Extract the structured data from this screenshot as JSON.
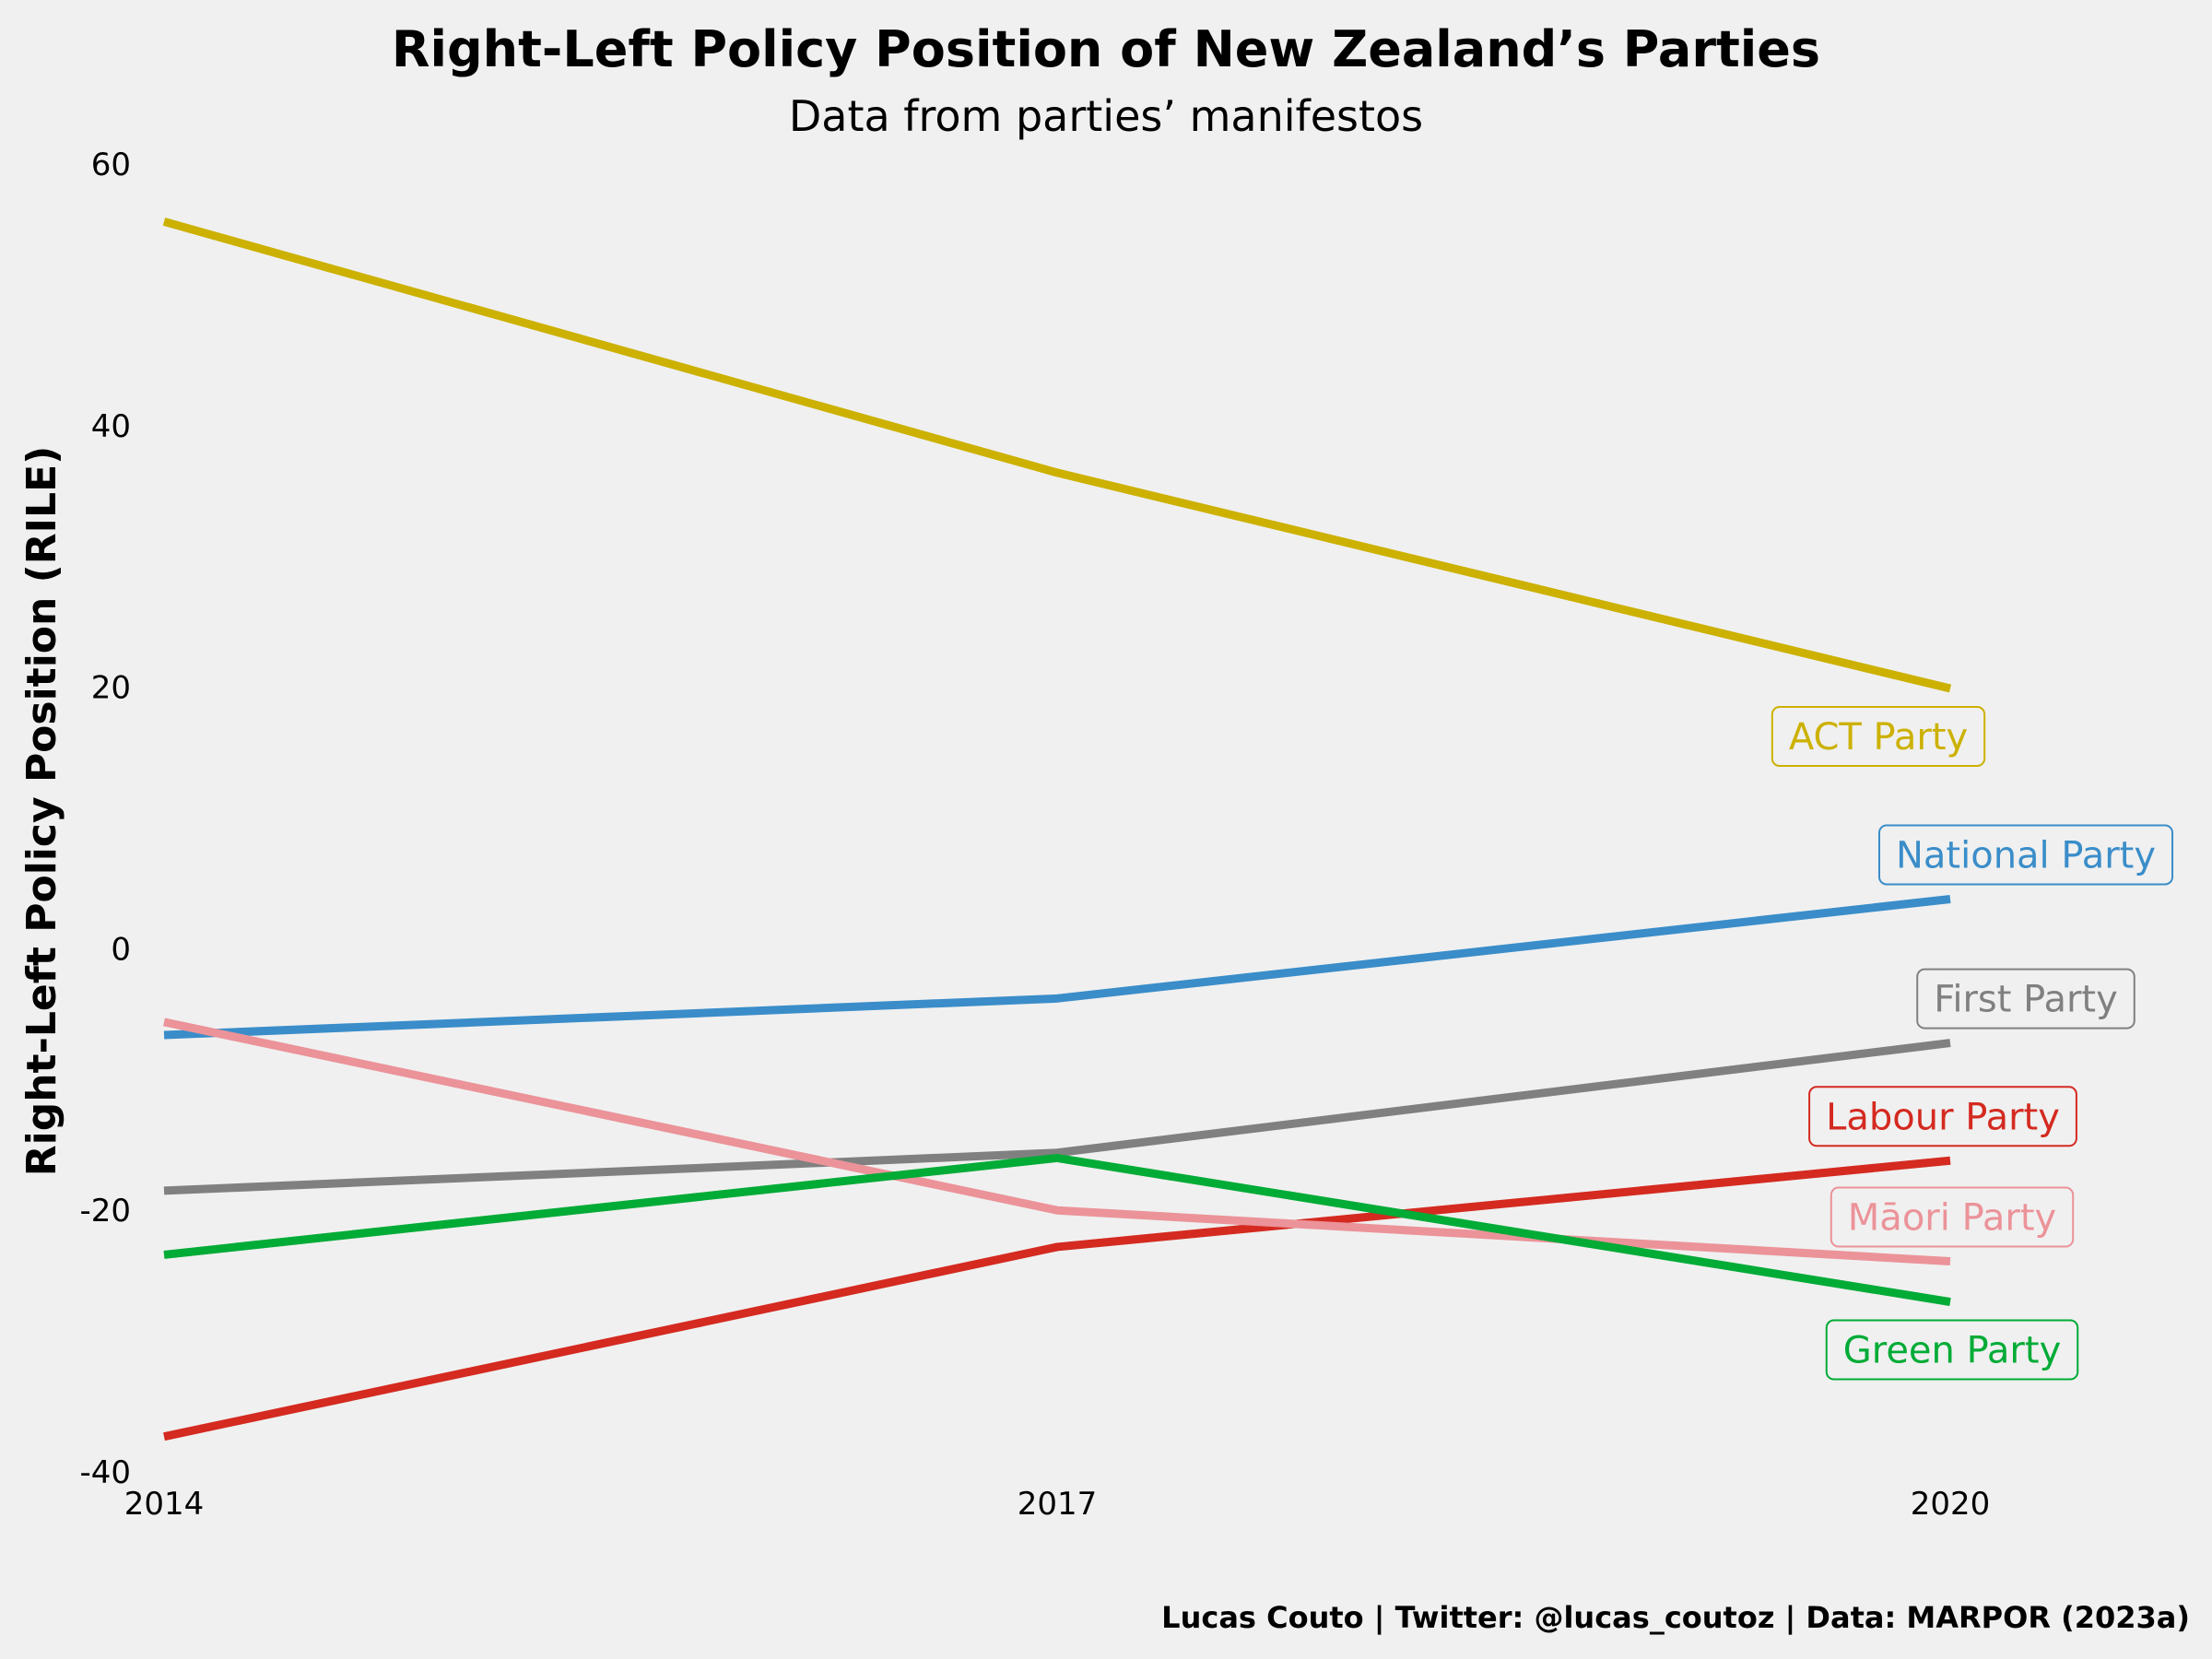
{
  "header": {
    "title": "Right-Left Policy Position of New Zealand’s Parties",
    "subtitle": "Data from parties’ manifestos"
  },
  "footer": {
    "caption": "Lucas Couto | Twitter: @lucas_coutoz | Data: MARPOR (2023a)"
  },
  "chart_data": {
    "type": "line",
    "title": "Right-Left Policy Position of New Zealand’s Parties",
    "subtitle": "Data from parties’ manifestos",
    "xlabel": "",
    "ylabel": "Right-Left Policy Position (RILE)",
    "x": [
      2014,
      2017,
      2020
    ],
    "x_tick_labels": [
      "2014",
      "2017",
      "2020"
    ],
    "ylim": [
      -40,
      60
    ],
    "y_ticks": [
      60,
      40,
      20,
      0,
      -20,
      -40
    ],
    "y_tick_labels": [
      "60",
      "40",
      "20",
      "0",
      "-20",
      "-40"
    ],
    "grid": false,
    "legend": "direct labels at line ends",
    "series": [
      {
        "name": "ACT Party",
        "color": "#ccb100",
        "values": [
          55.6,
          36.4,
          19.9
        ]
      },
      {
        "name": "National Party",
        "color": "#3a8dc9",
        "values": [
          -6.6,
          -3.8,
          3.8
        ]
      },
      {
        "name": "First Party",
        "color": "#808080",
        "values": [
          -18.5,
          -15.6,
          -7.2
        ]
      },
      {
        "name": "Labour Party",
        "color": "#d42a20",
        "values": [
          -37.3,
          -22.8,
          -16.2
        ]
      },
      {
        "name": "Māori Party",
        "color": "#eb9399",
        "values": [
          -5.6,
          -20.0,
          -23.9
        ]
      },
      {
        "name": "Green Party",
        "color": "#00ab36",
        "values": [
          -23.4,
          -16.0,
          -27.0
        ]
      }
    ],
    "caption": "Lucas Couto | Twitter: @lucas_coutoz | Data: MARPOR (2023a)"
  }
}
